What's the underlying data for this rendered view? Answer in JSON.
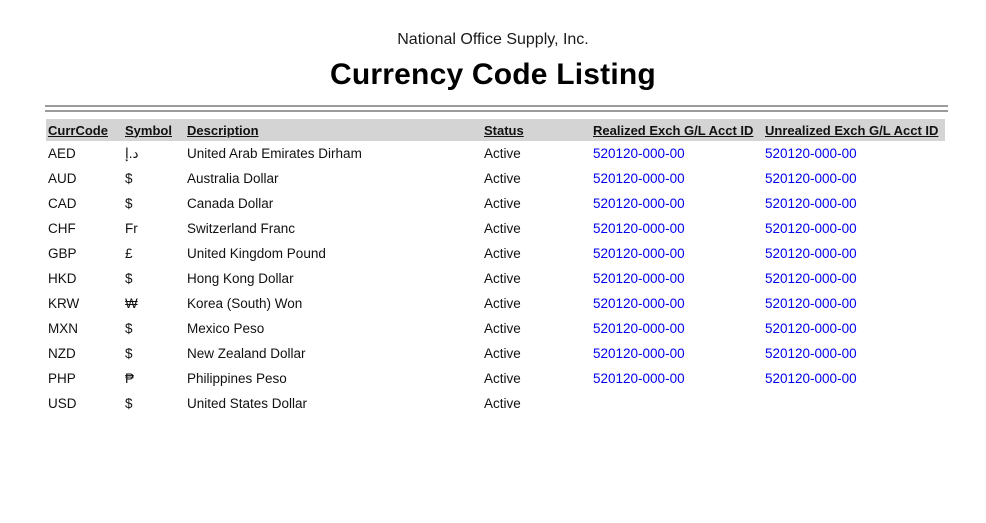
{
  "header": {
    "company": "National Office Supply, Inc.",
    "title": "Currency Code Listing"
  },
  "table": {
    "columns": [
      "CurrCode",
      "Symbol",
      "Description",
      "Status",
      "Realized Exch G/L Acct ID",
      "Unrealized Exch G/L Acct ID"
    ],
    "rows": [
      {
        "curr_code": "AED",
        "symbol": "د.إ",
        "description": "United Arab Emirates Dirham",
        "status": "Active",
        "realized_acct": "520120-000-00",
        "unrealized_acct": "520120-000-00"
      },
      {
        "curr_code": "AUD",
        "symbol": "$",
        "description": "Australia Dollar",
        "status": "Active",
        "realized_acct": "520120-000-00",
        "unrealized_acct": "520120-000-00"
      },
      {
        "curr_code": "CAD",
        "symbol": "$",
        "description": "Canada Dollar",
        "status": "Active",
        "realized_acct": "520120-000-00",
        "unrealized_acct": "520120-000-00"
      },
      {
        "curr_code": "CHF",
        "symbol": "Fr",
        "description": "Switzerland Franc",
        "status": "Active",
        "realized_acct": "520120-000-00",
        "unrealized_acct": "520120-000-00"
      },
      {
        "curr_code": "GBP",
        "symbol": "£",
        "description": "United Kingdom Pound",
        "status": "Active",
        "realized_acct": "520120-000-00",
        "unrealized_acct": "520120-000-00"
      },
      {
        "curr_code": "HKD",
        "symbol": "$",
        "description": "Hong Kong Dollar",
        "status": "Active",
        "realized_acct": "520120-000-00",
        "unrealized_acct": "520120-000-00"
      },
      {
        "curr_code": "KRW",
        "symbol": "₩",
        "description": "Korea (South) Won",
        "status": "Active",
        "realized_acct": "520120-000-00",
        "unrealized_acct": "520120-000-00"
      },
      {
        "curr_code": "MXN",
        "symbol": "$",
        "description": "Mexico Peso",
        "status": "Active",
        "realized_acct": "520120-000-00",
        "unrealized_acct": "520120-000-00"
      },
      {
        "curr_code": "NZD",
        "symbol": "$",
        "description": "New Zealand Dollar",
        "status": "Active",
        "realized_acct": "520120-000-00",
        "unrealized_acct": "520120-000-00"
      },
      {
        "curr_code": "PHP",
        "symbol": "₱",
        "description": "Philippines Peso",
        "status": "Active",
        "realized_acct": "520120-000-00",
        "unrealized_acct": "520120-000-00"
      },
      {
        "curr_code": "USD",
        "symbol": "$",
        "description": "United States Dollar",
        "status": "Active",
        "realized_acct": "",
        "unrealized_acct": ""
      }
    ]
  },
  "colors": {
    "acct_link_blue": "#0000ee",
    "header_band_gray": "#d4d4d4",
    "rule_gray": "#9b9b9b"
  }
}
